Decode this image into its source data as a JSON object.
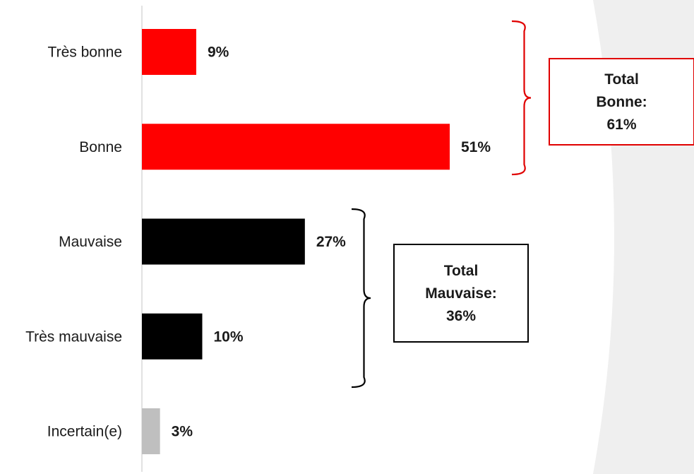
{
  "chart_data": {
    "type": "bar",
    "orientation": "horizontal",
    "categories": [
      "Très bonne",
      "Bonne",
      "Mauvaise",
      "Très mauvaise",
      "Incertain(e)"
    ],
    "values": [
      9,
      51,
      27,
      10,
      3
    ],
    "value_labels": [
      "9%",
      "51%",
      "27%",
      "10%",
      "3%"
    ],
    "unit": "%",
    "xlim": [
      0,
      100
    ],
    "colors": [
      "#ff0000",
      "#ff0000",
      "#000000",
      "#000000",
      "#bfbfbf"
    ],
    "axis_line_color": "#d9d9d9",
    "grid": false,
    "legend": "none",
    "annotations": [
      {
        "groups": [
          "Très bonne",
          "Bonne"
        ],
        "lines": [
          "Total",
          "Bonne:",
          "61%"
        ],
        "border_color": "#e00000",
        "brace_color": "#e00000"
      },
      {
        "groups": [
          "Mauvaise",
          "Très mauvaise"
        ],
        "lines": [
          "Total",
          "Mauvaise:",
          "36%"
        ],
        "border_color": "#000000",
        "brace_color": "#000000"
      }
    ]
  }
}
